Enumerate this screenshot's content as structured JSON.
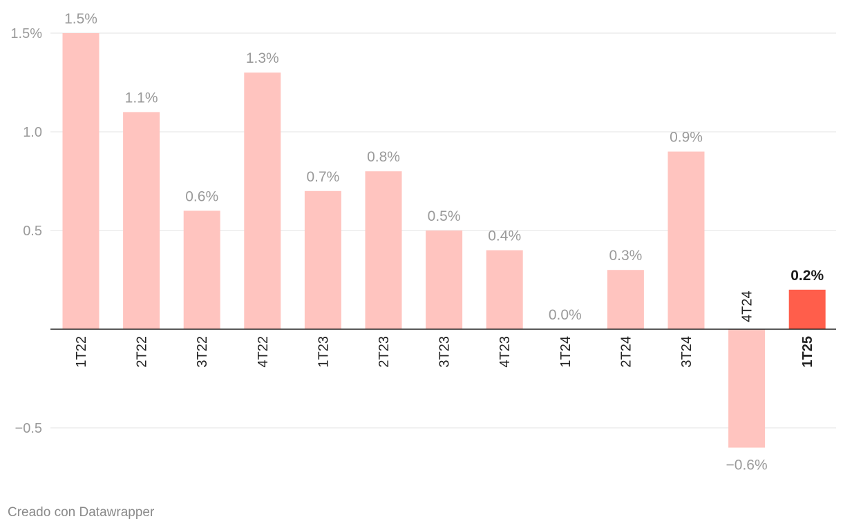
{
  "chart_data": {
    "type": "bar",
    "categories": [
      "1T22",
      "2T22",
      "3T22",
      "4T22",
      "1T23",
      "2T23",
      "3T23",
      "4T23",
      "1T24",
      "2T24",
      "3T24",
      "4T24",
      "1T25"
    ],
    "values": [
      1.5,
      1.1,
      0.6,
      1.3,
      0.7,
      0.8,
      0.5,
      0.4,
      0.0,
      0.3,
      0.9,
      -0.6,
      0.2
    ],
    "value_labels": [
      "1.5%",
      "1.1%",
      "0.6%",
      "1.3%",
      "0.7%",
      "0.8%",
      "0.5%",
      "0.4%",
      "0.0%",
      "0.3%",
      "0.9%",
      "−0.6%",
      "0.2%"
    ],
    "highlight_category": "1T25",
    "ylim": [
      -0.6,
      1.5
    ],
    "yticks": [
      {
        "value": 1.5,
        "label": "1.5%"
      },
      {
        "value": 1.0,
        "label": "1.0"
      },
      {
        "value": 0.5,
        "label": "0.5"
      },
      {
        "value": -0.5,
        "label": "−0.5"
      }
    ],
    "grid": true,
    "colors": {
      "bar": "#ffc4bf",
      "highlight": "#ff5e4b"
    },
    "title": "",
    "xlabel": "",
    "ylabel": ""
  },
  "footer": {
    "credit": "Creado con Datawrapper"
  }
}
